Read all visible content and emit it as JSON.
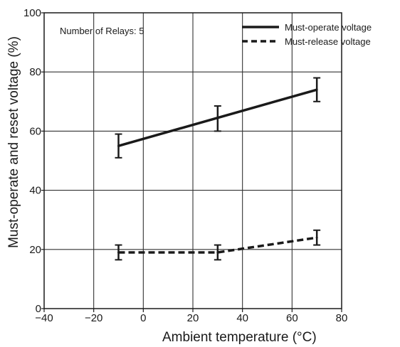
{
  "chart_data": {
    "type": "line",
    "title": "",
    "annotation": "Number of Relays: 5",
    "xlabel": "Ambient temperature (°C)",
    "ylabel": "Must-operate and reset voltage (%)",
    "xlim": [
      -40,
      80
    ],
    "ylim": [
      0,
      100
    ],
    "x_ticks": [
      -40,
      -20,
      0,
      20,
      40,
      60,
      80
    ],
    "y_ticks": [
      0,
      20,
      40,
      60,
      80,
      100
    ],
    "grid": true,
    "legend_position": "top-right",
    "series": [
      {
        "name": "Must-operate voltage",
        "line_style": "solid",
        "color": "#1a1a1a",
        "x": [
          -10,
          30,
          70
        ],
        "y": [
          55,
          64.5,
          74
        ],
        "error_low": [
          51,
          60,
          70
        ],
        "error_high": [
          59,
          68.5,
          78
        ]
      },
      {
        "name": "Must-release voltage",
        "line_style": "dashed",
        "color": "#1a1a1a",
        "x": [
          -10,
          30,
          70
        ],
        "y": [
          19,
          19,
          24
        ],
        "error_low": [
          16.5,
          16.5,
          21.5
        ],
        "error_high": [
          21.5,
          21.5,
          26.5
        ]
      }
    ]
  }
}
